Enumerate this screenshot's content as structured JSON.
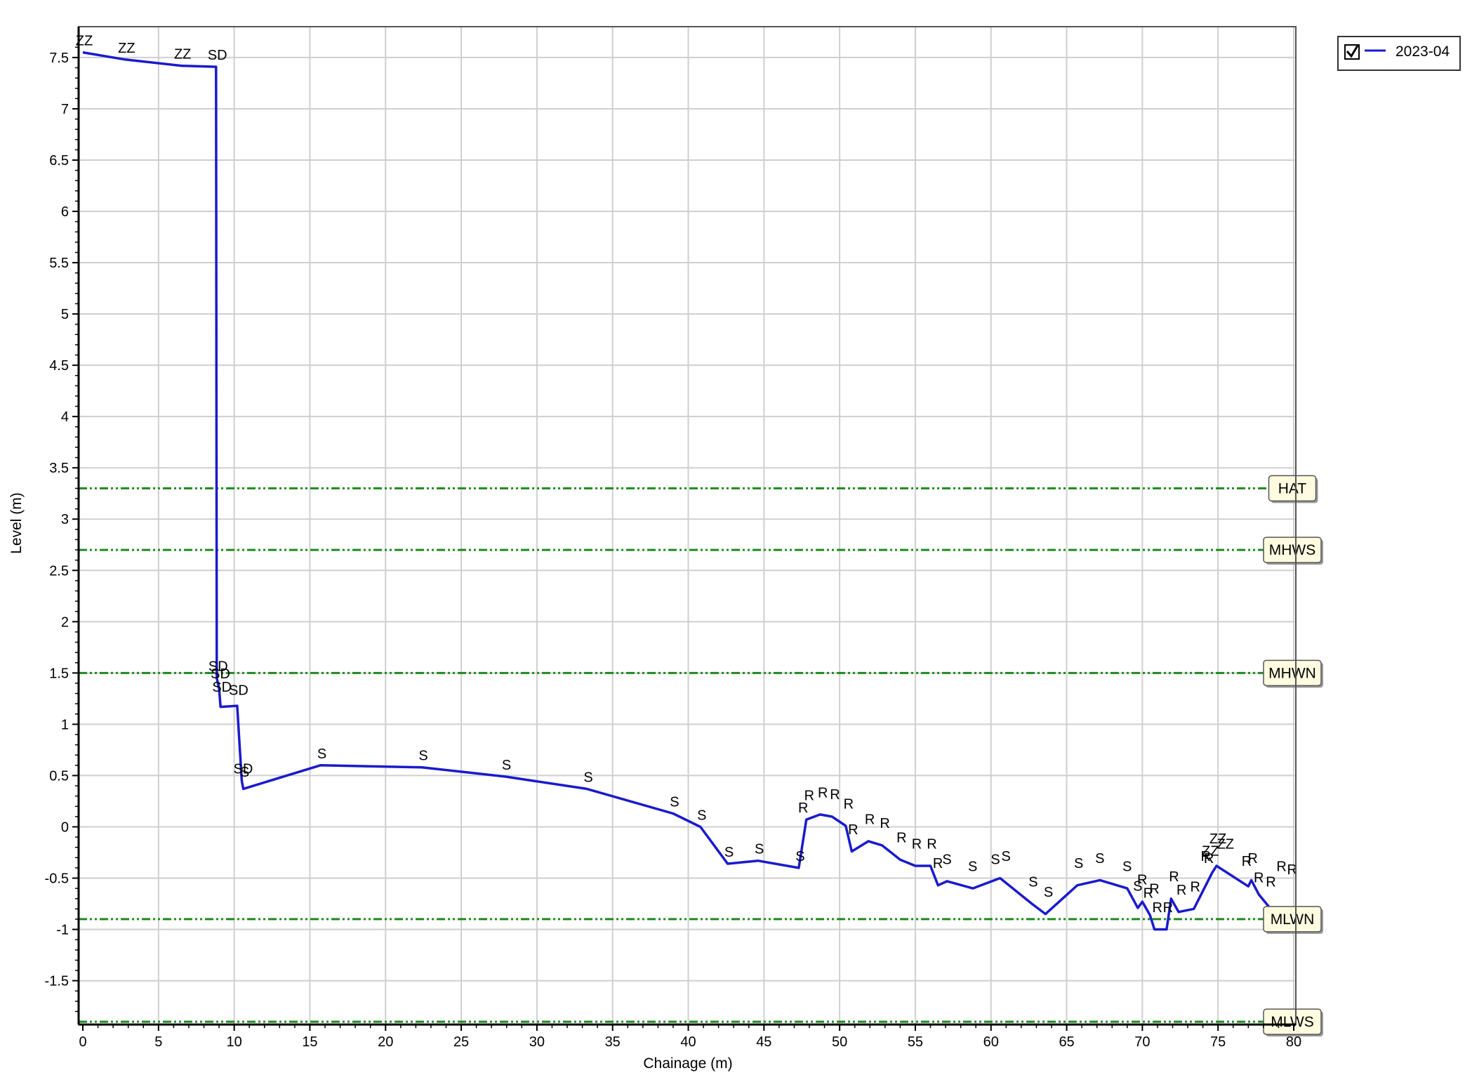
{
  "chart_data": {
    "type": "line",
    "xlabel": "Chainage (m)",
    "ylabel": "Level (m)",
    "xlim": [
      0,
      80
    ],
    "ylim": [
      -1.9,
      7.65
    ],
    "grid": true,
    "legend_position": "top-right",
    "x_ticks": [
      0,
      5,
      10,
      15,
      20,
      25,
      30,
      35,
      40,
      45,
      50,
      55,
      60,
      65,
      70,
      75,
      80
    ],
    "y_ticks": [
      -1.5,
      -1,
      -0.5,
      0,
      0.5,
      1,
      1.5,
      2,
      2.5,
      3,
      3.5,
      4,
      4.5,
      5,
      5.5,
      6,
      6.5,
      7,
      7.5
    ],
    "series": [
      {
        "name": "2023-04",
        "color": "#1a1acc",
        "legend_checked": true,
        "points": [
          [
            0,
            7.55
          ],
          [
            2.8,
            7.48
          ],
          [
            6.5,
            7.42
          ],
          [
            8.8,
            7.41
          ],
          [
            8.85,
            1.45
          ],
          [
            9.0,
            1.35
          ],
          [
            9.1,
            1.17
          ],
          [
            10.2,
            1.18
          ],
          [
            10.5,
            0.45
          ],
          [
            10.6,
            0.37
          ],
          [
            15.7,
            0.6
          ],
          [
            22.4,
            0.58
          ],
          [
            27.9,
            0.49
          ],
          [
            33.3,
            0.37
          ],
          [
            39.0,
            0.13
          ],
          [
            40.8,
            0.0
          ],
          [
            42.6,
            -0.36
          ],
          [
            44.6,
            -0.33
          ],
          [
            47.3,
            -0.4
          ],
          [
            47.8,
            0.07
          ],
          [
            48.7,
            0.12
          ],
          [
            49.5,
            0.1
          ],
          [
            50.4,
            0.01
          ],
          [
            50.8,
            -0.24
          ],
          [
            51.9,
            -0.14
          ],
          [
            52.8,
            -0.18
          ],
          [
            54.0,
            -0.32
          ],
          [
            55.0,
            -0.38
          ],
          [
            56.0,
            -0.38
          ],
          [
            56.5,
            -0.57
          ],
          [
            57.1,
            -0.53
          ],
          [
            58.8,
            -0.6
          ],
          [
            60.6,
            -0.5
          ],
          [
            62.7,
            -0.75
          ],
          [
            63.6,
            -0.85
          ],
          [
            65.7,
            -0.57
          ],
          [
            67.2,
            -0.52
          ],
          [
            69.0,
            -0.6
          ],
          [
            69.7,
            -0.79
          ],
          [
            70.0,
            -0.73
          ],
          [
            70.5,
            -0.86
          ],
          [
            70.8,
            -1.0
          ],
          [
            71.6,
            -1.0
          ],
          [
            71.9,
            -0.7
          ],
          [
            72.4,
            -0.83
          ],
          [
            73.4,
            -0.8
          ],
          [
            74.6,
            -0.45
          ],
          [
            74.9,
            -0.38
          ],
          [
            77.0,
            -0.58
          ],
          [
            77.2,
            -0.52
          ],
          [
            77.7,
            -0.66
          ],
          [
            79.2,
            -0.93
          ]
        ]
      }
    ],
    "point_codes": [
      {
        "code": "ZZ",
        "x": 0,
        "y": 7.55
      },
      {
        "code": "ZZ",
        "x": 2.8,
        "y": 7.48
      },
      {
        "code": "ZZ",
        "x": 6.5,
        "y": 7.42
      },
      {
        "code": "SD",
        "x": 8.8,
        "y": 7.41
      },
      {
        "code": "SD",
        "x": 8.85,
        "y": 1.45
      },
      {
        "code": "SD",
        "x": 9.0,
        "y": 1.38
      },
      {
        "code": "SD",
        "x": 9.1,
        "y": 1.25
      },
      {
        "code": "SD",
        "x": 10.2,
        "y": 1.22
      },
      {
        "code": "SD",
        "x": 10.5,
        "y": 0.45
      },
      {
        "code": "S",
        "x": 10.6,
        "y": 0.42
      },
      {
        "code": "S",
        "x": 15.7,
        "y": 0.6
      },
      {
        "code": "S",
        "x": 22.4,
        "y": 0.58
      },
      {
        "code": "S",
        "x": 27.9,
        "y": 0.49
      },
      {
        "code": "S",
        "x": 33.3,
        "y": 0.37
      },
      {
        "code": "S",
        "x": 39.0,
        "y": 0.13
      },
      {
        "code": "S",
        "x": 40.8,
        "y": 0.0
      },
      {
        "code": "S",
        "x": 42.6,
        "y": -0.36
      },
      {
        "code": "S",
        "x": 44.6,
        "y": -0.33
      },
      {
        "code": "S",
        "x": 47.3,
        "y": -0.4
      },
      {
        "code": "R",
        "x": 47.5,
        "y": 0.07
      },
      {
        "code": "R",
        "x": 47.9,
        "y": 0.19
      },
      {
        "code": "R",
        "x": 48.8,
        "y": 0.22
      },
      {
        "code": "R",
        "x": 49.6,
        "y": 0.2
      },
      {
        "code": "R",
        "x": 50.5,
        "y": 0.11
      },
      {
        "code": "R",
        "x": 50.8,
        "y": -0.14
      },
      {
        "code": "R",
        "x": 51.9,
        "y": -0.04
      },
      {
        "code": "R",
        "x": 52.9,
        "y": -0.08
      },
      {
        "code": "R",
        "x": 54.0,
        "y": -0.22
      },
      {
        "code": "R",
        "x": 55.0,
        "y": -0.28
      },
      {
        "code": "R",
        "x": 56.0,
        "y": -0.28
      },
      {
        "code": "R",
        "x": 56.4,
        "y": -0.47
      },
      {
        "code": "S",
        "x": 57.0,
        "y": -0.43
      },
      {
        "code": "S",
        "x": 58.7,
        "y": -0.5
      },
      {
        "code": "S",
        "x": 60.2,
        "y": -0.43
      },
      {
        "code": "S",
        "x": 60.9,
        "y": -0.4
      },
      {
        "code": "S",
        "x": 62.7,
        "y": -0.65
      },
      {
        "code": "S",
        "x": 63.7,
        "y": -0.75
      },
      {
        "code": "S",
        "x": 65.7,
        "y": -0.47
      },
      {
        "code": "S",
        "x": 67.1,
        "y": -0.42
      },
      {
        "code": "S",
        "x": 68.9,
        "y": -0.5
      },
      {
        "code": "S",
        "x": 69.6,
        "y": -0.69
      },
      {
        "code": "R",
        "x": 69.9,
        "y": -0.63
      },
      {
        "code": "R",
        "x": 70.3,
        "y": -0.76
      },
      {
        "code": "R",
        "x": 70.7,
        "y": -0.72
      },
      {
        "code": "R",
        "x": 70.9,
        "y": -0.9
      },
      {
        "code": "R",
        "x": 71.6,
        "y": -0.9
      },
      {
        "code": "R",
        "x": 72.0,
        "y": -0.6
      },
      {
        "code": "R",
        "x": 72.5,
        "y": -0.73
      },
      {
        "code": "R",
        "x": 73.4,
        "y": -0.7
      },
      {
        "code": "R",
        "x": 74.1,
        "y": -0.4
      },
      {
        "code": "ZZ",
        "x": 74.4,
        "y": -0.35
      },
      {
        "code": "R",
        "x": 74.3,
        "y": -0.42
      },
      {
        "code": "ZZ",
        "x": 74.9,
        "y": -0.23
      },
      {
        "code": "ZZ",
        "x": 75.4,
        "y": -0.28
      },
      {
        "code": "R",
        "x": 76.8,
        "y": -0.45
      },
      {
        "code": "R",
        "x": 77.2,
        "y": -0.42
      },
      {
        "code": "R",
        "x": 77.6,
        "y": -0.61
      },
      {
        "code": "R",
        "x": 78.4,
        "y": -0.65
      },
      {
        "code": "R",
        "x": 79.1,
        "y": -0.5
      },
      {
        "code": "R",
        "x": 79.8,
        "y": -0.53
      }
    ],
    "reference_lines": [
      {
        "label": "HAT",
        "y": 3.3,
        "color": "#1e8a1e"
      },
      {
        "label": "MHWS",
        "y": 2.7,
        "color": "#1e8a1e"
      },
      {
        "label": "MHWN",
        "y": 1.5,
        "color": "#1e8a1e"
      },
      {
        "label": "MLWN",
        "y": -0.9,
        "color": "#1e8a1e"
      },
      {
        "label": "MLWS",
        "y": -1.9,
        "color": "#1e8a1e"
      }
    ],
    "legend": [
      {
        "label": "2023-04",
        "checked": true,
        "color": "#1a1acc"
      }
    ]
  }
}
